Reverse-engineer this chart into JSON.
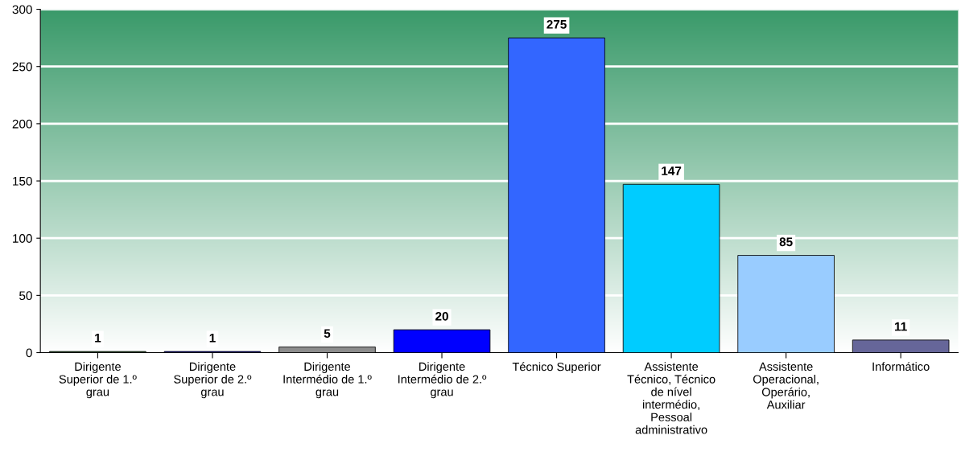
{
  "chart_data": {
    "type": "bar",
    "categories": [
      "Dirigente Superior de 1.º grau",
      "Dirigente Superior de 2.º grau",
      "Dirigente Intermédio de 1.º grau",
      "Dirigente Intermédio de 2.º grau",
      "Técnico Superior",
      "Assistente Técnico, Técnico de nível intermédio, Pessoal administrativo",
      "Assistente Operacional, Operário, Auxiliar",
      "Informático"
    ],
    "values": [
      1,
      1,
      5,
      20,
      275,
      147,
      85,
      11
    ],
    "colors": [
      "#336633",
      "#000099",
      "#8c8c8c",
      "#0000ff",
      "#3366ff",
      "#00ccff",
      "#99ccff",
      "#666699"
    ],
    "ylim": [
      0,
      300
    ],
    "yticks": [
      0,
      50,
      100,
      150,
      200,
      250,
      300
    ],
    "grid": "y",
    "data_labels": true
  }
}
